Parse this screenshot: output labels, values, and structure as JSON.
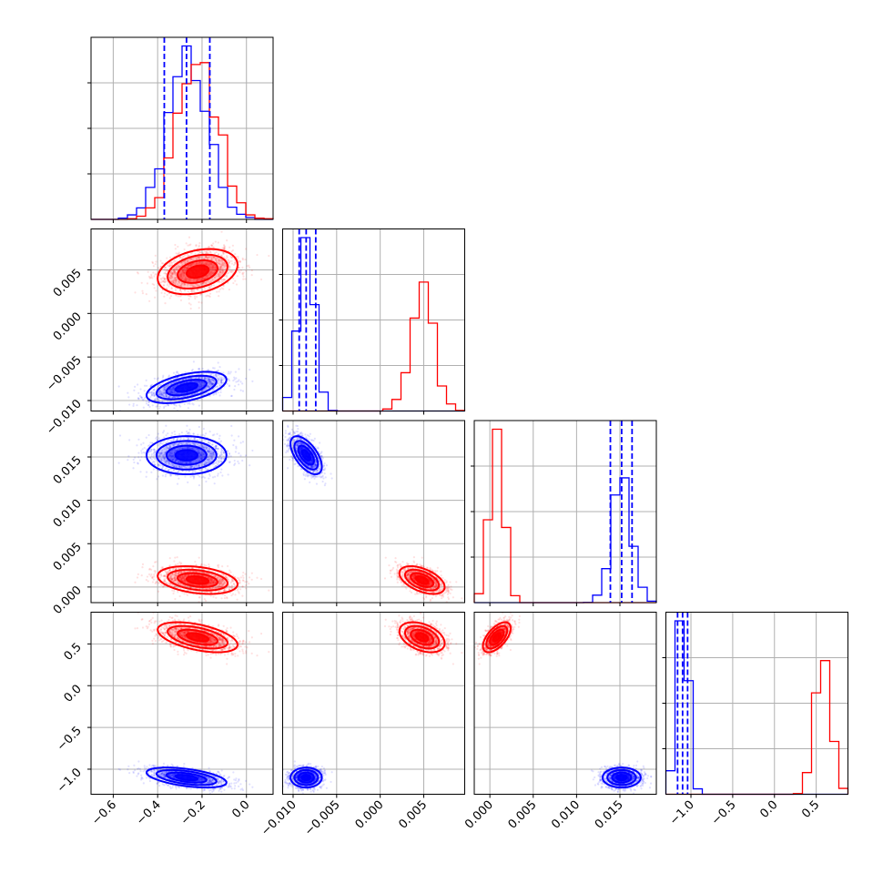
{
  "chart_data": {
    "type": "scatter",
    "title": "",
    "colors": {
      "series_a": "#0000ff",
      "series_b": "#ff0000",
      "grid": "#b0b0b0"
    },
    "series": [
      {
        "color": "#0000ff",
        "means": [
          -0.27,
          -0.0085,
          0.0152,
          -1.1
        ],
        "sds": [
          0.09,
          0.0009,
          0.0011,
          0.06
        ],
        "rho": [
          [
            1,
            0.5,
            0.0,
            -0.5
          ],
          [
            0.5,
            1,
            -0.6,
            0.0
          ],
          [
            0.0,
            -0.6,
            1,
            0.0
          ],
          [
            -0.5,
            0.0,
            0.0,
            1
          ]
        ]
      },
      {
        "color": "#ff0000",
        "means": [
          -0.22,
          0.0048,
          0.0008,
          0.58
        ],
        "sds": [
          0.09,
          0.0013,
          0.0008,
          0.09
        ],
        "rho": [
          [
            1,
            0.3,
            -0.3,
            -0.5
          ],
          [
            0.3,
            1,
            -0.5,
            -0.4
          ],
          [
            -0.3,
            -0.5,
            1,
            0.6
          ],
          [
            -0.5,
            -0.4,
            0.6,
            1
          ]
        ]
      }
    ],
    "params": [
      {
        "range": [
          -0.7,
          0.12
        ],
        "ticks": [
          "-0.6",
          "-0.4",
          "-0.2",
          "0.0"
        ]
      },
      {
        "range": [
          -0.0112,
          0.0097
        ],
        "ticks": [
          "-0.010",
          "-0.005",
          "0.000",
          "0.005"
        ]
      },
      {
        "range": [
          -0.0018,
          0.0192
        ],
        "ticks": [
          "0.000",
          "0.005",
          "0.010",
          "0.015"
        ]
      },
      {
        "range": [
          -1.3,
          0.88
        ],
        "ticks": [
          "-1.0",
          "-0.5",
          "0.0",
          "0.5"
        ]
      }
    ],
    "quantile_lines": [
      {
        "param": 0,
        "color": "#0000ff",
        "values": [
          -0.37,
          -0.27,
          -0.165
        ]
      },
      {
        "param": 1,
        "color": "#0000ff",
        "values": [
          -0.0093,
          -0.0085,
          -0.0074
        ]
      },
      {
        "param": 2,
        "color": "#0000ff",
        "values": [
          0.0139,
          0.0152,
          0.0164
        ]
      },
      {
        "param": 3,
        "color": "#0000ff",
        "values": [
          -1.16,
          -1.1,
          -1.04
        ]
      }
    ],
    "grid": true,
    "legend": "none"
  }
}
